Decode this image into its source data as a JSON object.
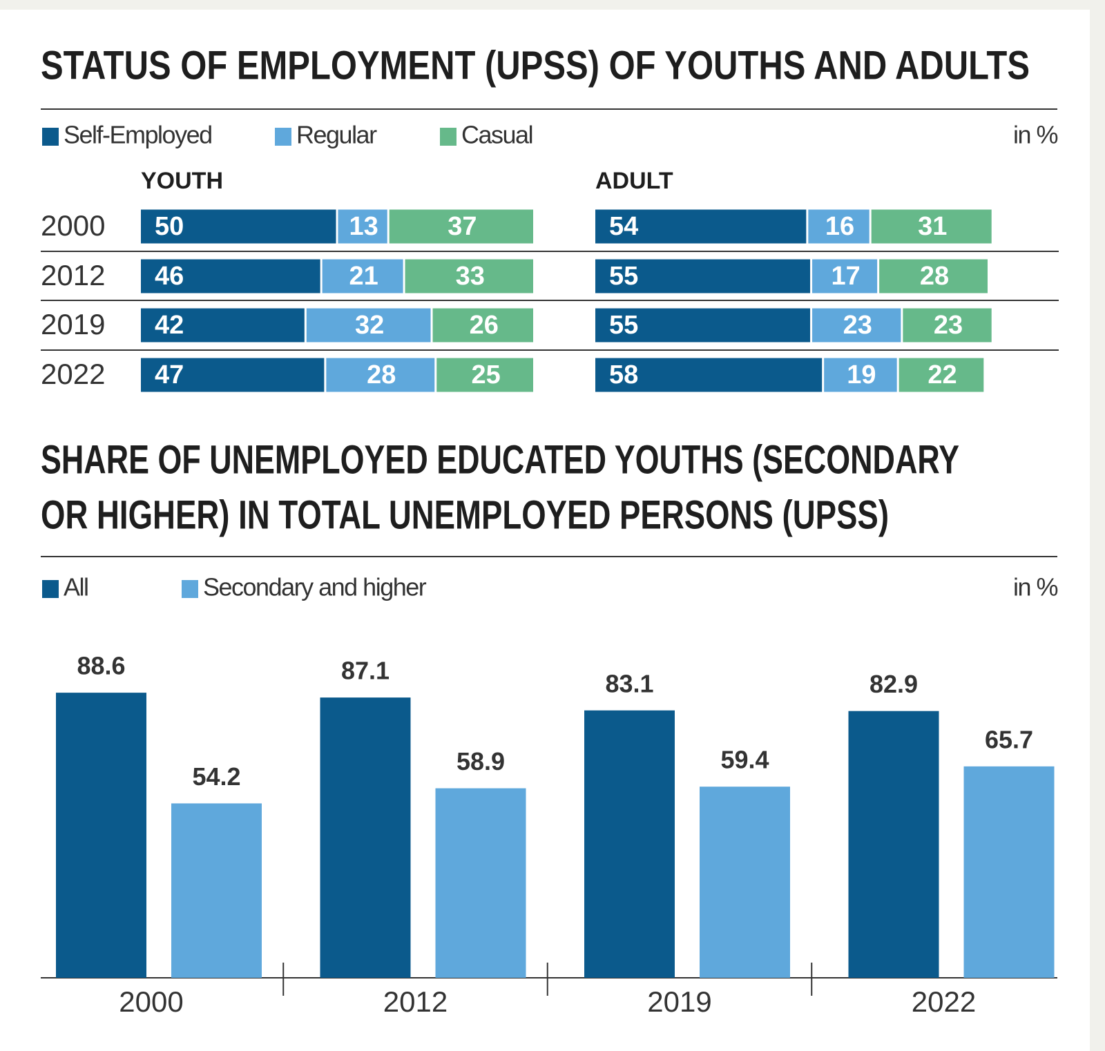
{
  "chart_data": [
    {
      "type": "bar",
      "orientation": "horizontal",
      "stacked": true,
      "title": "STATUS OF EMPLOYMENT (UPSS) OF YOUTHS AND ADULTS",
      "unit": "in %",
      "legend": [
        {
          "name": "Self-Employed",
          "color": "#0b5a8c"
        },
        {
          "name": "Regular",
          "color": "#5fa8dc"
        },
        {
          "name": "Casual",
          "color": "#66b98a"
        }
      ],
      "categories": [
        "2000",
        "2012",
        "2019",
        "2022"
      ],
      "panels": [
        {
          "title": "YOUTH",
          "series": [
            {
              "values": [
                50,
                46,
                42,
                47
              ]
            },
            {
              "values": [
                13,
                21,
                32,
                28
              ]
            },
            {
              "values": [
                37,
                33,
                26,
                25
              ]
            }
          ]
        },
        {
          "title": "ADULT",
          "series": [
            {
              "values": [
                54,
                55,
                55,
                58
              ]
            },
            {
              "values": [
                16,
                17,
                23,
                19
              ]
            },
            {
              "values": [
                31,
                28,
                23,
                22
              ]
            }
          ]
        }
      ]
    },
    {
      "type": "bar",
      "title": [
        "SHARE OF UNEMPLOYED EDUCATED YOUTHS (SECONDARY",
        "OR HIGHER) IN TOTAL UNEMPLOYED PERSONS (UPSS)"
      ],
      "unit": "in %",
      "categories": [
        "2000",
        "2012",
        "2019",
        "2022"
      ],
      "series": [
        {
          "name": "All",
          "color": "#0b5a8c",
          "values": [
            88.6,
            87.1,
            83.1,
            82.9
          ]
        },
        {
          "name": "Secondary and higher",
          "color": "#5fa8dc",
          "values": [
            54.2,
            58.9,
            59.4,
            65.7
          ]
        }
      ]
    }
  ]
}
